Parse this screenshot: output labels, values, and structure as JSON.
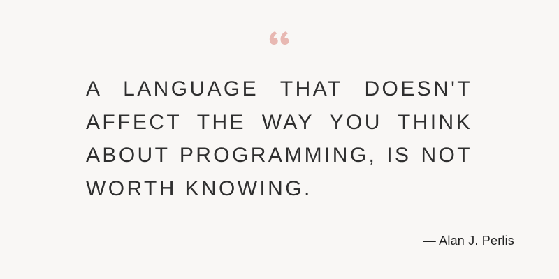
{
  "quote": {
    "text": "A LANGUAGE THAT DOESN'T AFFECT THE WAY YOU THINK ABOUT PROGRAMMING, IS NOT WORTH KNOWING.",
    "author": "— Alan J. Perlis",
    "icon": "quote-mark-icon",
    "accent_color": "#e8b8b2",
    "background_color": "#f9f7f5",
    "text_color": "#2f2f2f"
  }
}
